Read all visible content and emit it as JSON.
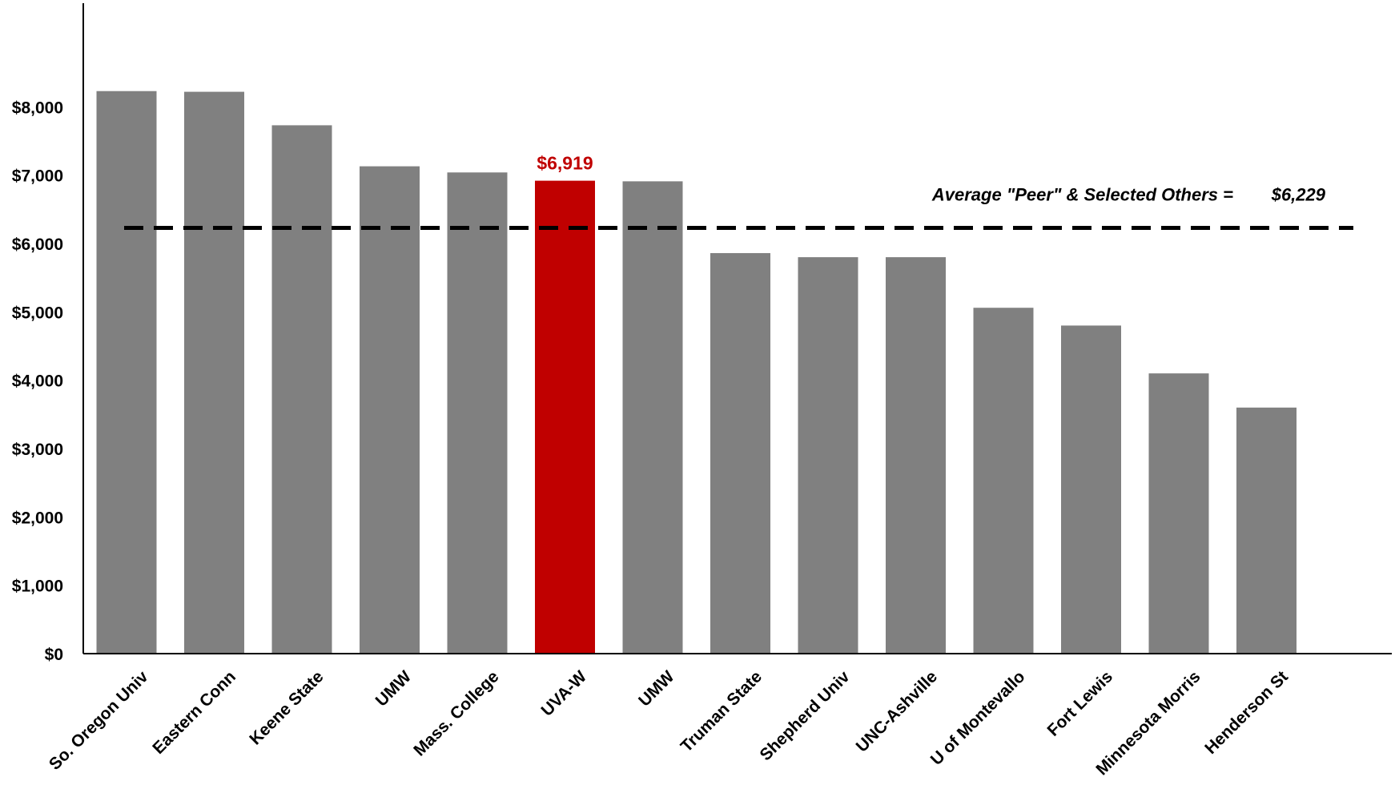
{
  "chart_data": {
    "type": "bar",
    "categories": [
      "So. Oregon Univ",
      "Eastern Conn",
      "Keene State",
      "UMW",
      "Mass. College",
      "UVA-W",
      "UMW",
      "Truman State",
      "Shepherd Univ",
      "UNC-Ashville",
      "U of Montevallo",
      "Fort Lewis",
      "Minnesota Morris",
      "Henderson St"
    ],
    "values": [
      8230,
      8220,
      7730,
      7130,
      7040,
      6919,
      6910,
      5860,
      5800,
      5800,
      5060,
      4800,
      4100,
      3600
    ],
    "highlight_index": 5,
    "highlight_label": "$6,919",
    "ylim": [
      0,
      8500
    ],
    "yticks": [
      0,
      1000,
      2000,
      3000,
      4000,
      5000,
      6000,
      7000,
      8000
    ],
    "ytick_labels": [
      "$0",
      "$1,000",
      "$2,000",
      "$3,000",
      "$4,000",
      "$5,000",
      "$6,000",
      "$7,000",
      "$8,000"
    ],
    "average": {
      "value": 6229,
      "label": "Average \"Peer\" & Selected Others =",
      "value_label": "$6,229"
    },
    "colors": {
      "bar": "#808080",
      "highlight": "#c00000",
      "axis": "#000000",
      "average_line": "#000000"
    },
    "grid": false,
    "legend": "none",
    "title": "",
    "xlabel": "",
    "ylabel": ""
  }
}
